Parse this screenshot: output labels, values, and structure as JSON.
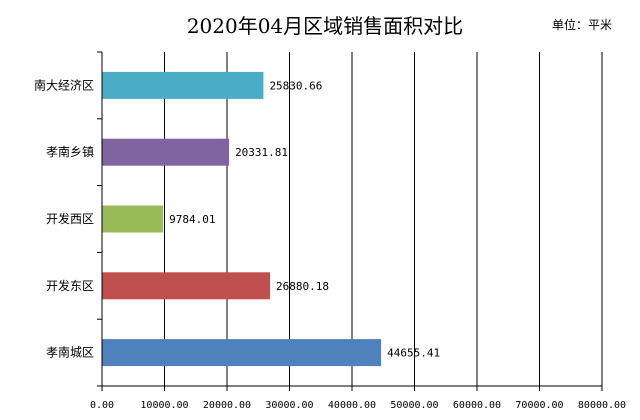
{
  "chart_data": {
    "type": "bar",
    "orientation": "horizontal",
    "title": "2020年04月区域销售面积对比",
    "unit_label": "单位：平米",
    "categories": [
      "南大经济区",
      "孝南乡镇",
      "开发西区",
      "开发东区",
      "孝南城区"
    ],
    "values": [
      25830.66,
      20331.81,
      9784.01,
      26880.18,
      44655.41
    ],
    "value_labels": [
      "25830.66",
      "20331.81",
      "9784.01",
      "26880.18",
      "44655.41"
    ],
    "colors": [
      "#4bacc6",
      "#8064a2",
      "#9bbb59",
      "#c0504d",
      "#4f81bd"
    ],
    "xlim": [
      0,
      80000
    ],
    "x_ticks": [
      0,
      10000,
      20000,
      30000,
      40000,
      50000,
      60000,
      70000,
      80000
    ],
    "x_tick_labels": [
      "0.00",
      "10000.00",
      "20000.00",
      "30000.00",
      "40000.00",
      "50000.00",
      "60000.00",
      "70000.00",
      "80000.00"
    ],
    "grid": true,
    "legend": "none"
  }
}
